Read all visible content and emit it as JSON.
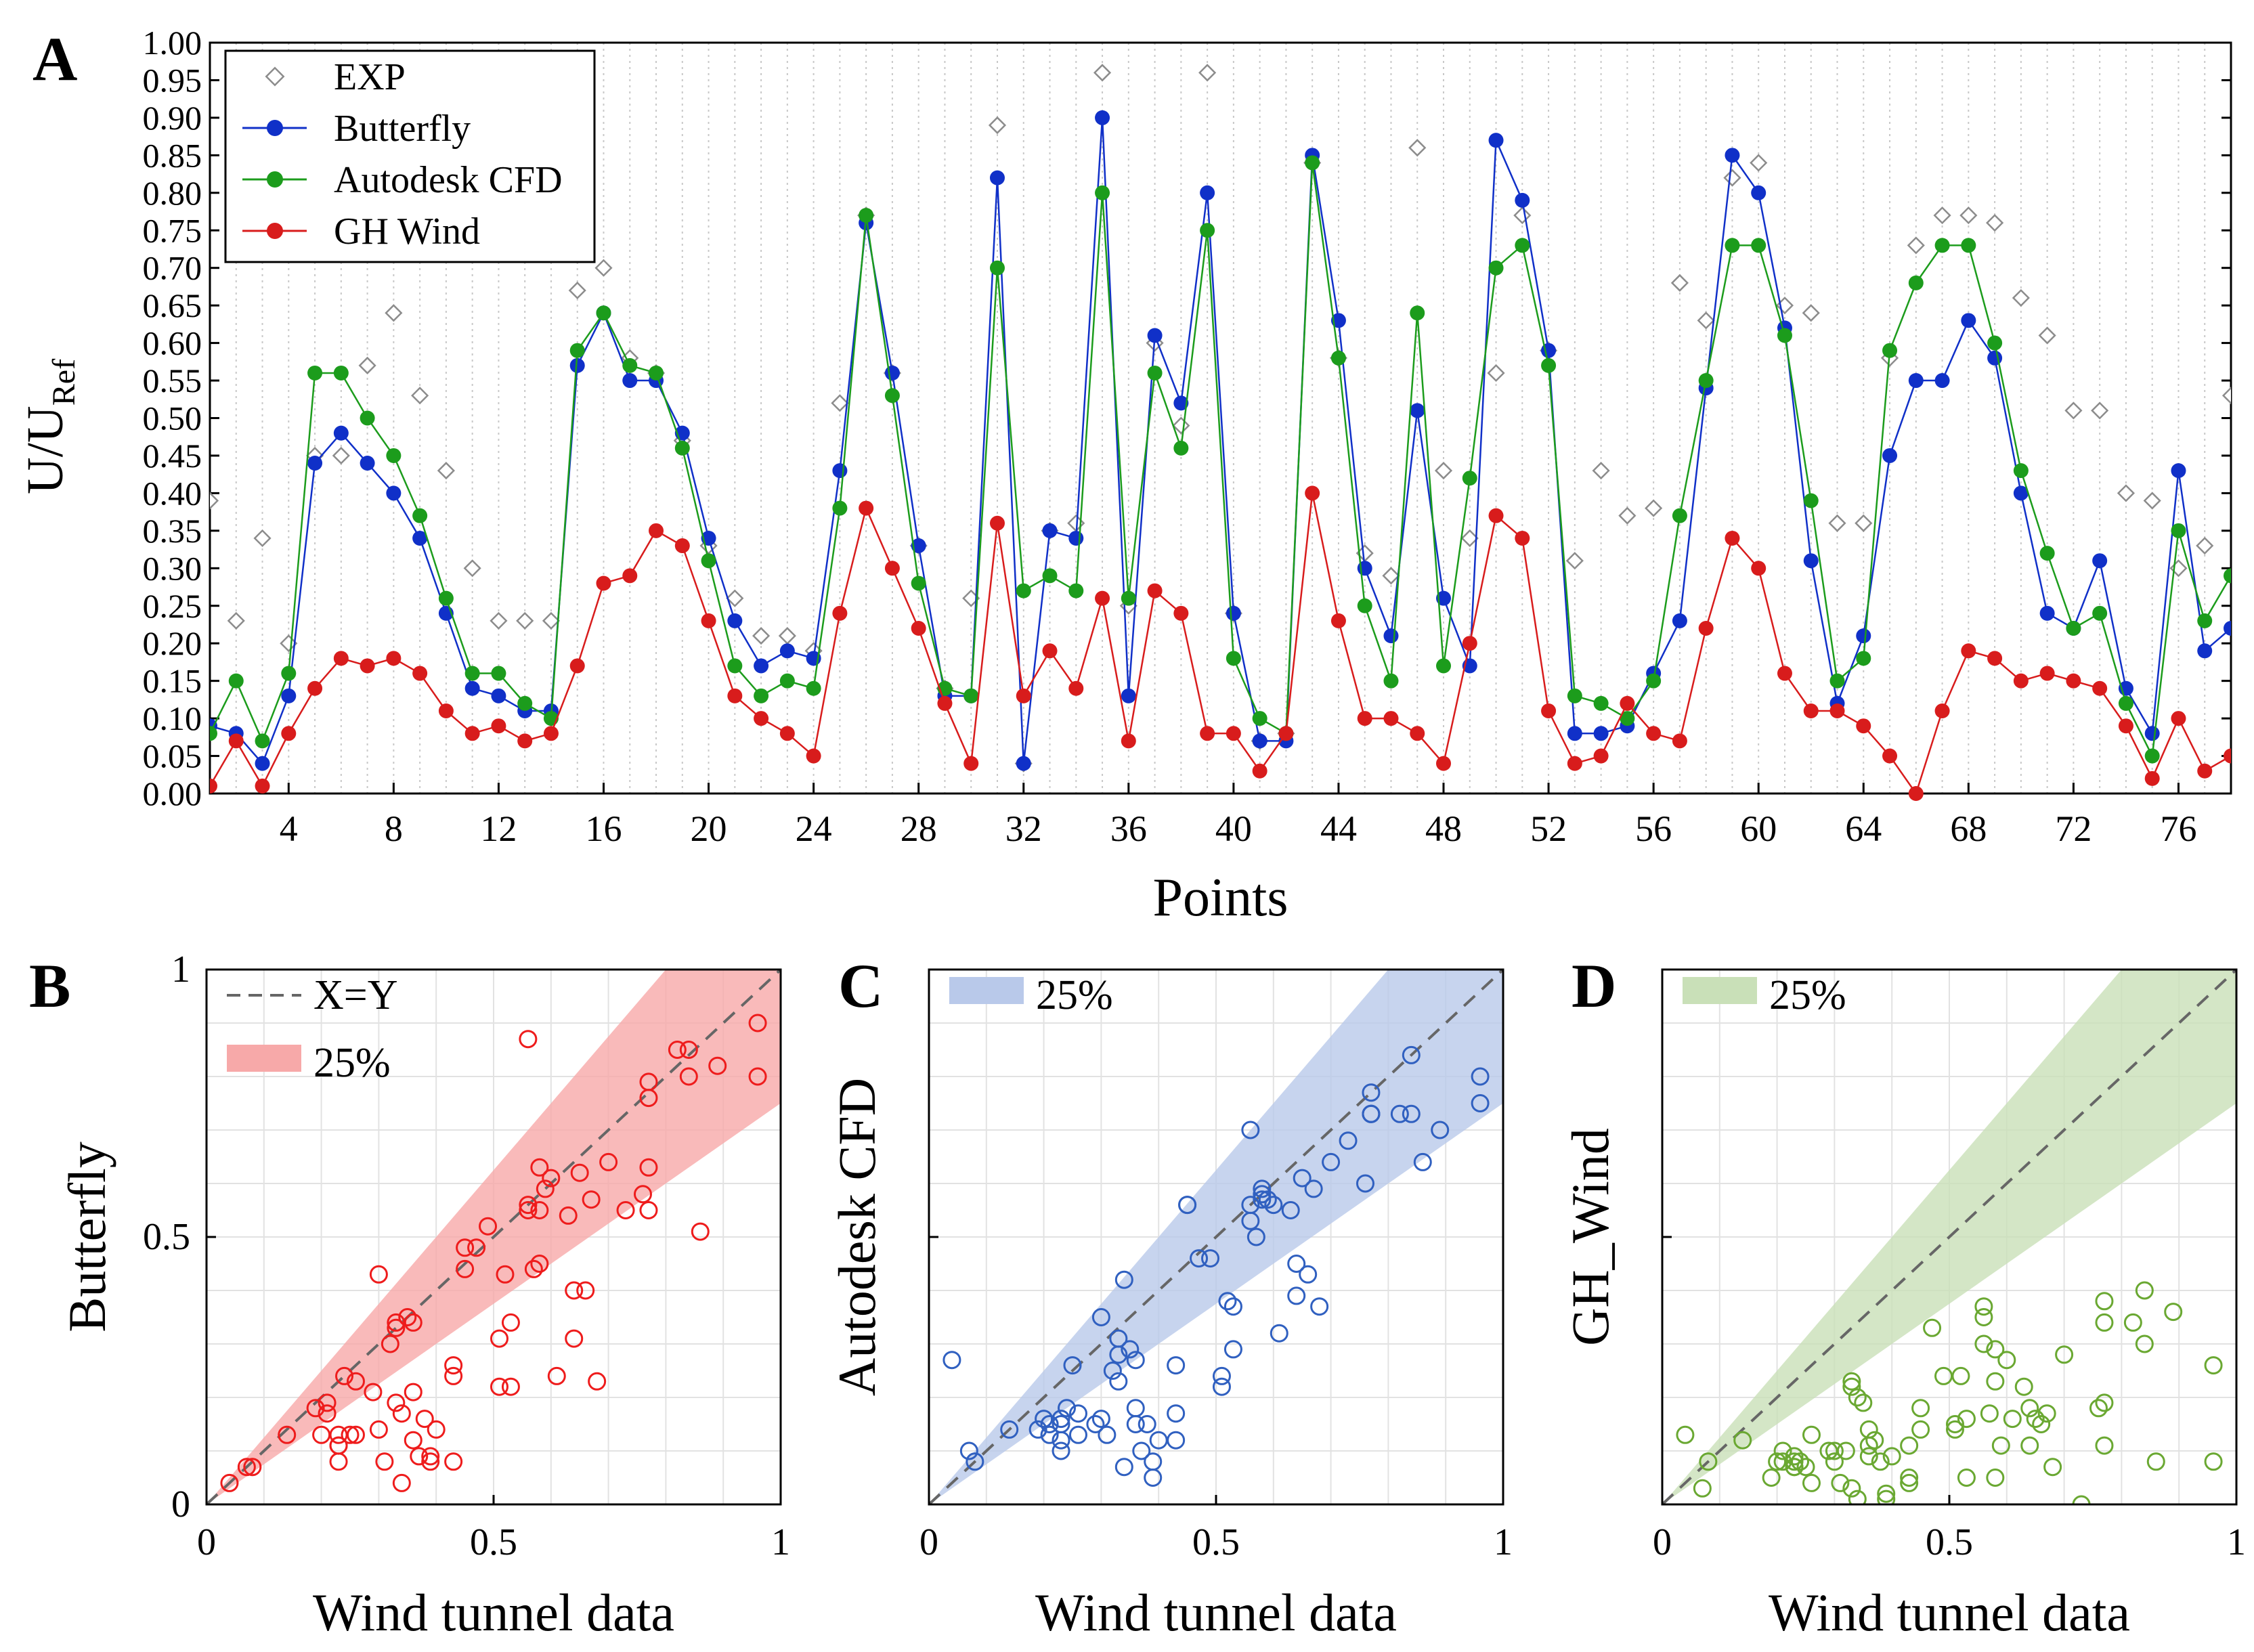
{
  "chart_data": [
    {
      "id": "A",
      "type": "line",
      "panel_label": "A",
      "xlabel": "Points",
      "ylabel_main": "U/U",
      "ylabel_sub": "Ref",
      "xlim": [
        1,
        78
      ],
      "ylim": [
        0,
        1
      ],
      "x_ticks": [
        4,
        8,
        12,
        16,
        20,
        24,
        28,
        32,
        36,
        40,
        44,
        48,
        52,
        56,
        60,
        64,
        68,
        72,
        76
      ],
      "y_ticks": [
        "0.00",
        "0.05",
        "0.10",
        "0.15",
        "0.20",
        "0.25",
        "0.30",
        "0.35",
        "0.40",
        "0.45",
        "0.50",
        "0.55",
        "0.60",
        "0.65",
        "0.70",
        "0.75",
        "0.80",
        "0.85",
        "0.90",
        "0.95",
        "1.00"
      ],
      "grid": "vertical dotted",
      "legend_position": "top-left",
      "series": [
        {
          "name": "EXP",
          "color": "#8c8c8c",
          "marker": "diamond",
          "line": false,
          "values": [
            0.39,
            0.23,
            0.34,
            0.2,
            0.45,
            0.45,
            0.57,
            0.64,
            0.53,
            0.43,
            0.3,
            0.23,
            0.23,
            0.23,
            0.67,
            0.7,
            0.58,
            0.56,
            0.47,
            0.33,
            0.26,
            0.21,
            0.21,
            0.19,
            0.52,
            0.77,
            0.56,
            0.33,
            0.14,
            0.26,
            0.89,
            0.04,
            0.35,
            0.36,
            0.96,
            0.25,
            0.6,
            0.49,
            0.96,
            0.24,
            0.07,
            0.08,
            0.84,
            0.58,
            0.32,
            0.29,
            0.86,
            0.43,
            0.34,
            0.56,
            0.77,
            0.59,
            0.31,
            0.43,
            0.37,
            0.38,
            0.68,
            0.63,
            0.82,
            0.84,
            0.65,
            0.64,
            0.36,
            0.36,
            0.58,
            0.73,
            0.77,
            0.77,
            0.76,
            0.66,
            0.61,
            0.51,
            0.51,
            0.4,
            0.39,
            0.3,
            0.33,
            0.53
          ]
        },
        {
          "name": "Butterfly",
          "color": "#1030c8",
          "marker": "dot",
          "line": true,
          "values": [
            0.09,
            0.08,
            0.04,
            0.13,
            0.44,
            0.48,
            0.44,
            0.4,
            0.34,
            0.24,
            0.14,
            0.13,
            0.11,
            0.11,
            0.57,
            0.64,
            0.55,
            0.55,
            0.48,
            0.34,
            0.23,
            0.17,
            0.19,
            0.18,
            0.43,
            0.76,
            0.56,
            0.33,
            0.13,
            0.13,
            0.82,
            0.04,
            0.35,
            0.34,
            0.9,
            0.13,
            0.61,
            0.52,
            0.8,
            0.24,
            0.07,
            0.07,
            0.85,
            0.63,
            0.3,
            0.21,
            0.51,
            0.26,
            0.17,
            0.87,
            0.79,
            0.59,
            0.08,
            0.08,
            0.09,
            0.16,
            0.23,
            0.54,
            0.85,
            0.8,
            0.62,
            0.31,
            0.12,
            0.21,
            0.45,
            0.55,
            0.55,
            0.63,
            0.58,
            0.4,
            0.24,
            0.22,
            0.31,
            0.14,
            0.08,
            0.43,
            0.19,
            0.22
          ]
        },
        {
          "name": "Autodesk CFD",
          "color": "#1c9c1c",
          "marker": "dot",
          "line": true,
          "values": [
            0.08,
            0.15,
            0.07,
            0.16,
            0.56,
            0.56,
            0.5,
            0.45,
            0.37,
            0.26,
            0.16,
            0.16,
            0.12,
            0.1,
            0.59,
            0.64,
            0.57,
            0.56,
            0.46,
            0.31,
            0.17,
            0.13,
            0.15,
            0.14,
            0.38,
            0.77,
            0.53,
            0.28,
            0.14,
            0.13,
            0.7,
            0.27,
            0.29,
            0.27,
            0.8,
            0.26,
            0.56,
            0.46,
            0.75,
            0.18,
            0.1,
            0.08,
            0.84,
            0.58,
            0.25,
            0.15,
            0.64,
            0.17,
            0.42,
            0.7,
            0.73,
            0.57,
            0.13,
            0.12,
            0.1,
            0.15,
            0.37,
            0.55,
            0.73,
            0.73,
            0.61,
            0.39,
            0.15,
            0.18,
            0.59,
            0.68,
            0.73,
            0.73,
            0.6,
            0.43,
            0.32,
            0.22,
            0.24,
            0.12,
            0.05,
            0.35,
            0.23,
            0.29
          ]
        },
        {
          "name": "GH Wind",
          "color": "#d81c1c",
          "marker": "dot",
          "line": true,
          "values": [
            0.01,
            0.07,
            0.01,
            0.08,
            0.14,
            0.18,
            0.17,
            0.18,
            0.16,
            0.11,
            0.08,
            0.09,
            0.07,
            0.08,
            0.17,
            0.28,
            0.29,
            0.35,
            0.33,
            0.23,
            0.13,
            0.1,
            0.08,
            0.05,
            0.24,
            0.38,
            0.3,
            0.22,
            0.12,
            0.04,
            0.36,
            0.13,
            0.19,
            0.14,
            0.26,
            0.07,
            0.27,
            0.24,
            0.08,
            0.08,
            0.03,
            0.08,
            0.4,
            0.23,
            0.1,
            0.1,
            0.08,
            0.04,
            0.2,
            0.37,
            0.34,
            0.11,
            0.04,
            0.05,
            0.12,
            0.08,
            0.07,
            0.22,
            0.34,
            0.3,
            0.16,
            0.11,
            0.11,
            0.09,
            0.05,
            0.0,
            0.11,
            0.19,
            0.18,
            0.15,
            0.16,
            0.15,
            0.14,
            0.09,
            0.02,
            0.1,
            0.03,
            0.05
          ]
        }
      ]
    },
    {
      "id": "B",
      "type": "scatter",
      "panel_label": "B",
      "xlabel": "Wind tunnel data",
      "ylabel": "Butterfly",
      "xlim": [
        0,
        1
      ],
      "ylim": [
        0,
        1
      ],
      "x_tick_labels": [
        "0",
        "0.5",
        "1"
      ],
      "y_tick_labels": [
        "0",
        "0.5",
        "1"
      ],
      "color": "#ee1c1c",
      "band_color": "#f7a9a9",
      "band_label": "25%",
      "line_label": "X=Y",
      "legend_position": "top-left",
      "band_fraction": 0.25
    },
    {
      "id": "C",
      "type": "scatter",
      "panel_label": "C",
      "xlabel": "Wind tunnel data",
      "ylabel": "Autodesk CFD",
      "xlim": [
        0,
        1
      ],
      "ylim": [
        0,
        1
      ],
      "x_tick_labels": [
        "0",
        "0.5",
        "1"
      ],
      "y_tick_labels": [],
      "color": "#3060c0",
      "band_color": "#b9c9ea",
      "band_label": "25%",
      "legend_position": "top-left",
      "band_fraction": 0.25
    },
    {
      "id": "D",
      "type": "scatter",
      "panel_label": "D",
      "xlabel": "Wind tunnel data",
      "ylabel": "GH_Wind",
      "xlim": [
        0,
        1
      ],
      "ylim": [
        0,
        1
      ],
      "x_tick_labels": [
        "0",
        "0.5",
        "1"
      ],
      "y_tick_labels": [],
      "color": "#6aa832",
      "band_color": "#c9e0b8",
      "band_label": "25%",
      "legend_position": "top-left",
      "band_fraction": 0.25
    }
  ]
}
